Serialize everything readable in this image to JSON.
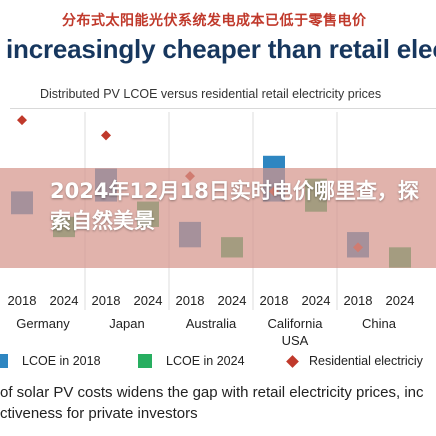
{
  "header": {
    "chinese_title": "分布式太阳能光伏系统发电成本已低于零售电价",
    "headline": "increasingly cheaper than retail electric"
  },
  "chart_data": {
    "type": "bar",
    "title": "Distributed PV LCOE versus residential retail electricity prices",
    "tick_labels": [
      "2018",
      "2024"
    ],
    "groups": [
      {
        "name": "Germany",
        "lcoe_2018": [
          0.145,
          0.19
        ],
        "lcoe_2024": [
          0.1,
          0.14
        ],
        "retail": 0.33
      },
      {
        "name": "Japan",
        "lcoe_2018": [
          0.17,
          0.235
        ],
        "lcoe_2024": [
          0.12,
          0.17
        ],
        "retail": 0.3
      },
      {
        "name": "Australia",
        "lcoe_2018": [
          0.08,
          0.13
        ],
        "lcoe_2024": [
          0.06,
          0.1
        ],
        "retail": 0.22
      },
      {
        "name": "California\nUSA",
        "lcoe_2018": [
          0.17,
          0.26
        ],
        "lcoe_2024": [
          0.15,
          0.215
        ],
        "retail": 0.19
      },
      {
        "name": "China",
        "lcoe_2018": [
          0.06,
          0.11
        ],
        "lcoe_2024": [
          0.04,
          0.08
        ],
        "retail": 0.08
      }
    ],
    "legend": {
      "lcoe_2018": "LCOE in 2018",
      "lcoe_2024": "LCOE in 2024",
      "retail": "Residential electriciy"
    },
    "colors": {
      "lcoe_2018": "#2e86c1",
      "lcoe_2024": "#27ae60",
      "retail": "#c0392b"
    },
    "ylim": [
      0,
      0.35
    ]
  },
  "overlay": {
    "text": "2024年12月18日实时电价哪里查，探索自然美景"
  },
  "footnote": {
    "line1": "of solar PV costs widens the gap with retail electricity prices, inc",
    "line2": "ctiveness for private investors"
  }
}
